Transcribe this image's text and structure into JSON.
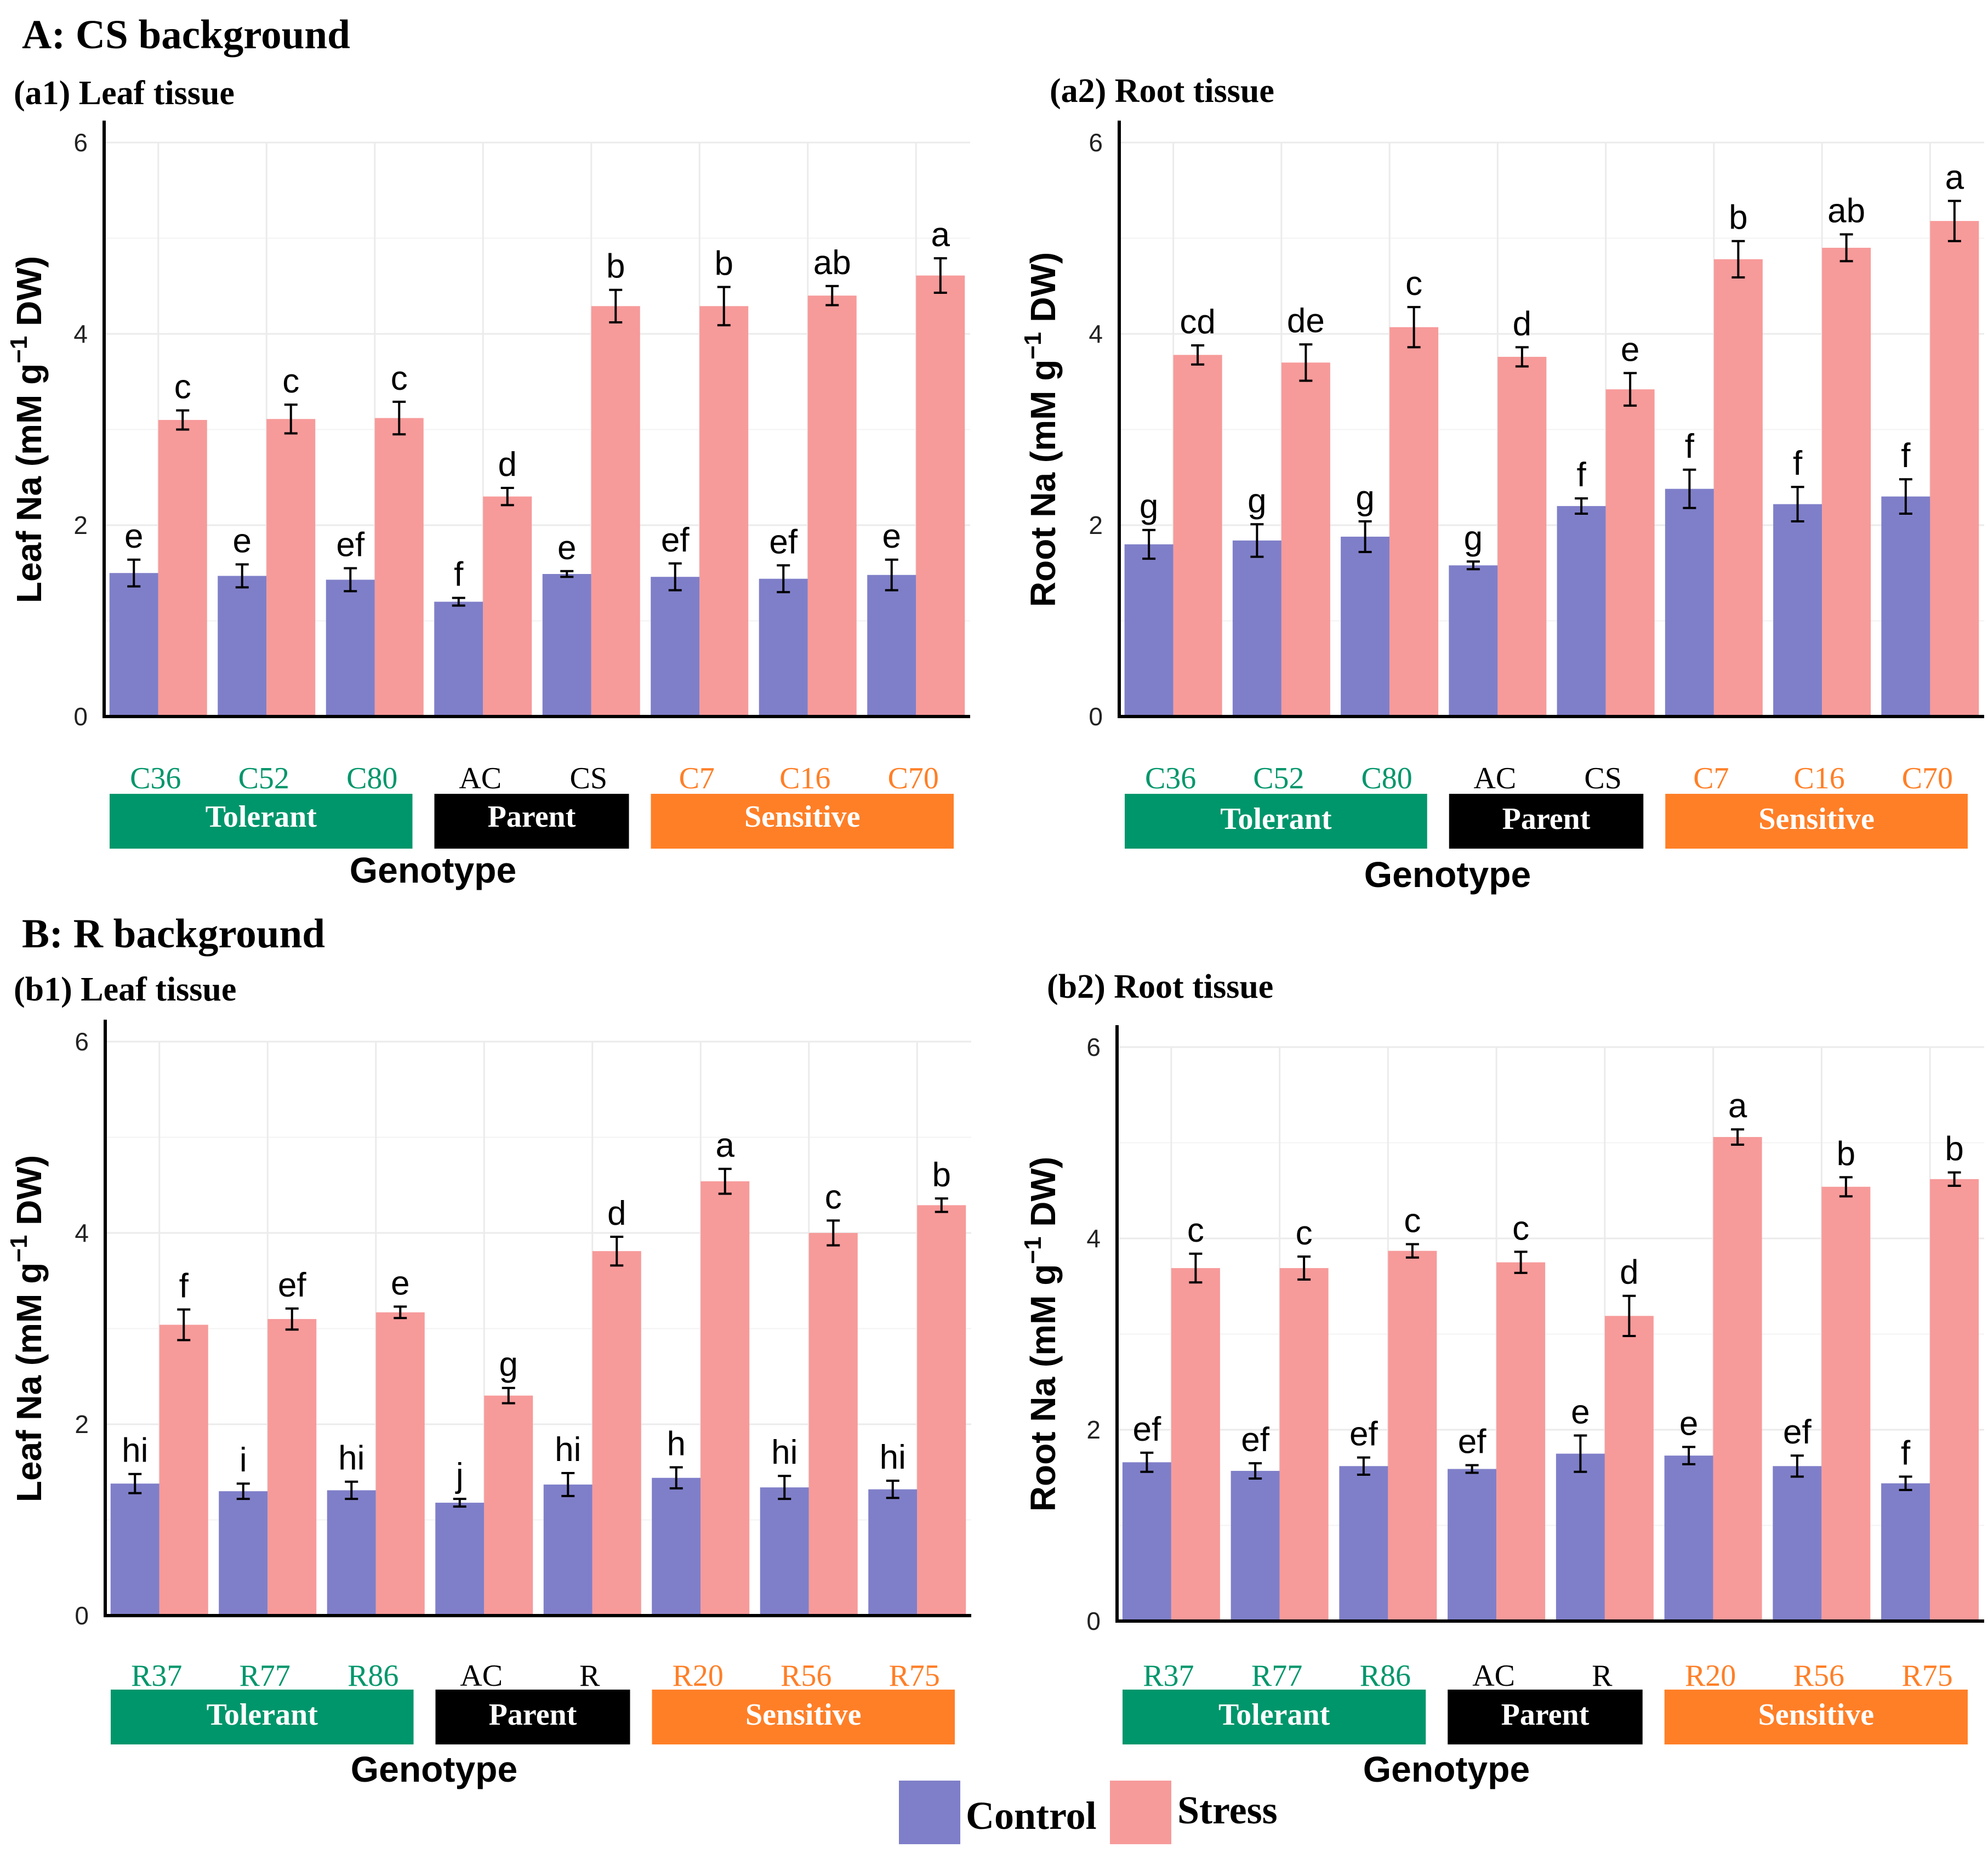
{
  "colors": {
    "control": "#7f7fc9",
    "stress": "#f79a9a",
    "tolerant": "#00966b",
    "parent": "#000000",
    "sensitive": "#ff7f27",
    "grid": "#ebebeb",
    "axis": "#000000"
  },
  "legend": {
    "control": "Control",
    "stress": "Stress"
  },
  "chart_data": [
    {
      "type": "bar",
      "section_title": "A: CS background",
      "title": "(a1) Leaf tissue",
      "xlabel": "Genotype",
      "ylabel_prefix": "Leaf Na (mM g",
      "ylabel_sup": "−1",
      "ylabel_suffix": " DW)",
      "ylim": [
        0,
        6
      ],
      "yticks": [
        "0",
        "2",
        "4",
        "6"
      ],
      "categories": [
        "C36",
        "C52",
        "C80",
        "AC",
        "CS",
        "C7",
        "C16",
        "C70"
      ],
      "category_colors": [
        "tolerant",
        "tolerant",
        "tolerant",
        "parent",
        "parent",
        "sensitive",
        "sensitive",
        "sensitive"
      ],
      "groups": [
        {
          "label": "Tolerant",
          "color": "tolerant",
          "span": [
            0,
            2
          ]
        },
        {
          "label": "Parent",
          "color": "parent",
          "span": [
            3,
            4
          ]
        },
        {
          "label": "Sensitive",
          "color": "sensitive",
          "span": [
            5,
            7
          ]
        }
      ],
      "series": [
        {
          "name": "Control",
          "values": [
            1.5,
            1.47,
            1.43,
            1.2,
            1.49,
            1.46,
            1.44,
            1.48
          ],
          "errors": [
            0.14,
            0.12,
            0.12,
            0.04,
            0.03,
            0.14,
            0.14,
            0.16
          ],
          "letters": [
            "e",
            "e",
            "ef",
            "f",
            "e",
            "ef",
            "ef",
            "e"
          ]
        },
        {
          "name": "Stress",
          "values": [
            3.1,
            3.11,
            3.12,
            2.3,
            4.29,
            4.29,
            4.4,
            4.61
          ],
          "errors": [
            0.1,
            0.15,
            0.17,
            0.09,
            0.17,
            0.2,
            0.1,
            0.18
          ],
          "letters": [
            "c",
            "c",
            "c",
            "d",
            "b",
            "b",
            "ab",
            "a"
          ]
        }
      ]
    },
    {
      "type": "bar",
      "title": "(a2) Root tissue",
      "xlabel": "Genotype",
      "ylabel_prefix": "Root Na (mM g",
      "ylabel_sup": "−1",
      "ylabel_suffix": " DW)",
      "ylim": [
        0,
        6
      ],
      "yticks": [
        "0",
        "2",
        "4",
        "6"
      ],
      "categories": [
        "C36",
        "C52",
        "C80",
        "AC",
        "CS",
        "C7",
        "C16",
        "C70"
      ],
      "category_colors": [
        "tolerant",
        "tolerant",
        "tolerant",
        "parent",
        "parent",
        "sensitive",
        "sensitive",
        "sensitive"
      ],
      "groups": [
        {
          "label": "Tolerant",
          "color": "tolerant",
          "span": [
            0,
            2
          ]
        },
        {
          "label": "Parent",
          "color": "parent",
          "span": [
            3,
            4
          ]
        },
        {
          "label": "Sensitive",
          "color": "sensitive",
          "span": [
            5,
            7
          ]
        }
      ],
      "series": [
        {
          "name": "Control",
          "values": [
            1.8,
            1.84,
            1.88,
            1.58,
            2.2,
            2.38,
            2.22,
            2.3
          ],
          "errors": [
            0.15,
            0.17,
            0.16,
            0.04,
            0.08,
            0.2,
            0.18,
            0.18
          ],
          "letters": [
            "g",
            "g",
            "g",
            "g",
            "f",
            "f",
            "f",
            "f"
          ]
        },
        {
          "name": "Stress",
          "values": [
            3.78,
            3.7,
            4.07,
            3.76,
            3.42,
            4.78,
            4.9,
            5.18
          ],
          "errors": [
            0.1,
            0.19,
            0.21,
            0.1,
            0.17,
            0.19,
            0.14,
            0.21
          ],
          "letters": [
            "cd",
            "de",
            "c",
            "d",
            "e",
            "b",
            "ab",
            "a"
          ]
        }
      ]
    },
    {
      "type": "bar",
      "section_title": "B: R background",
      "title": "(b1) Leaf tissue",
      "xlabel": "Genotype",
      "ylabel_prefix": "Leaf Na (mM g",
      "ylabel_sup": "−1",
      "ylabel_suffix": " DW)",
      "ylim": [
        0,
        6
      ],
      "yticks": [
        "0",
        "2",
        "4",
        "6"
      ],
      "categories": [
        "R37",
        "R77",
        "R86",
        "AC",
        "R",
        "R20",
        "R56",
        "R75"
      ],
      "category_colors": [
        "tolerant",
        "tolerant",
        "tolerant",
        "parent",
        "parent",
        "sensitive",
        "sensitive",
        "sensitive"
      ],
      "groups": [
        {
          "label": "Tolerant",
          "color": "tolerant",
          "span": [
            0,
            2
          ]
        },
        {
          "label": "Parent",
          "color": "parent",
          "span": [
            3,
            4
          ]
        },
        {
          "label": "Sensitive",
          "color": "sensitive",
          "span": [
            5,
            7
          ]
        }
      ],
      "series": [
        {
          "name": "Control",
          "values": [
            1.38,
            1.3,
            1.31,
            1.18,
            1.37,
            1.44,
            1.34,
            1.32
          ],
          "errors": [
            0.1,
            0.08,
            0.09,
            0.04,
            0.12,
            0.11,
            0.12,
            0.09
          ],
          "letters": [
            "hi",
            "i",
            "hi",
            "j",
            "hi",
            "h",
            "hi",
            "hi"
          ]
        },
        {
          "name": "Stress",
          "values": [
            3.04,
            3.1,
            3.17,
            2.3,
            3.81,
            4.54,
            4.0,
            4.29
          ],
          "errors": [
            0.16,
            0.11,
            0.06,
            0.08,
            0.15,
            0.13,
            0.13,
            0.07
          ],
          "letters": [
            "f",
            "ef",
            "e",
            "g",
            "d",
            "a",
            "c",
            "b"
          ]
        }
      ]
    },
    {
      "type": "bar",
      "title": "(b2) Root tissue",
      "xlabel": "Genotype",
      "ylabel_prefix": "Root Na (mM g",
      "ylabel_sup": "−1",
      "ylabel_suffix": " DW)",
      "ylim": [
        0,
        6
      ],
      "yticks": [
        "0",
        "2",
        "4",
        "6"
      ],
      "categories": [
        "R37",
        "R77",
        "R86",
        "AC",
        "R",
        "R20",
        "R56",
        "R75"
      ],
      "category_colors": [
        "tolerant",
        "tolerant",
        "tolerant",
        "parent",
        "parent",
        "sensitive",
        "sensitive",
        "sensitive"
      ],
      "groups": [
        {
          "label": "Tolerant",
          "color": "tolerant",
          "span": [
            0,
            2
          ]
        },
        {
          "label": "Parent",
          "color": "parent",
          "span": [
            3,
            4
          ]
        },
        {
          "label": "Sensitive",
          "color": "sensitive",
          "span": [
            5,
            7
          ]
        }
      ],
      "series": [
        {
          "name": "Control",
          "values": [
            1.66,
            1.57,
            1.62,
            1.59,
            1.75,
            1.73,
            1.62,
            1.44
          ],
          "errors": [
            0.1,
            0.08,
            0.09,
            0.04,
            0.19,
            0.09,
            0.11,
            0.07
          ],
          "letters": [
            "ef",
            "ef",
            "ef",
            "ef",
            "e",
            "e",
            "ef",
            "f"
          ]
        },
        {
          "name": "Stress",
          "values": [
            3.69,
            3.69,
            3.87,
            3.75,
            3.19,
            5.06,
            4.54,
            4.62
          ],
          "errors": [
            0.15,
            0.12,
            0.07,
            0.11,
            0.21,
            0.08,
            0.1,
            0.07
          ],
          "letters": [
            "c",
            "c",
            "c",
            "c",
            "d",
            "a",
            "b",
            "b"
          ]
        }
      ]
    }
  ]
}
